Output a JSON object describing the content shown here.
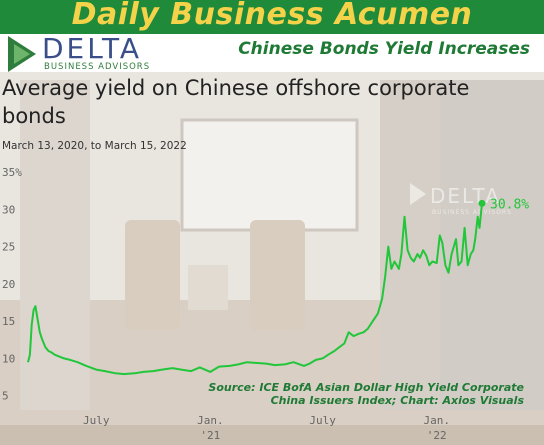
{
  "banner": {
    "title": "Daily Business Acumen"
  },
  "logo": {
    "name": "DELTA",
    "tagline": "BUSINESS ADVISORS"
  },
  "headline": "Chinese Bonds Yield Increases",
  "watermark": {
    "name": "DELTA",
    "tagline": "BUSINESS ADVISORS"
  },
  "colors": {
    "banner": "#1f8a3a",
    "banner_text": "#f4d24a",
    "line": "#22c63a",
    "headline": "#1f7a35"
  },
  "chart_data": {
    "type": "line",
    "title": "Average yield on Chinese offshore corporate bonds",
    "subtitle": "March 13, 2020, to March 15, 2022",
    "xlabel": "",
    "ylabel": "",
    "ylim": [
      0,
      35
    ],
    "yticks": [
      {
        "value": 5,
        "label": "5"
      },
      {
        "value": 10,
        "label": "10"
      },
      {
        "value": 15,
        "label": "15"
      },
      {
        "value": 20,
        "label": "20"
      },
      {
        "value": 25,
        "label": "25"
      },
      {
        "value": 30,
        "label": "30"
      },
      {
        "value": 35,
        "label": "35%"
      }
    ],
    "xlim": [
      "2020-03-13",
      "2022-03-15"
    ],
    "xticks": [
      {
        "date": "2020-07-01",
        "label": "July",
        "sub": ""
      },
      {
        "date": "2021-01-01",
        "label": "Jan.",
        "sub": "'21"
      },
      {
        "date": "2021-07-01",
        "label": "July",
        "sub": ""
      },
      {
        "date": "2022-01-01",
        "label": "Jan.",
        "sub": "'22"
      }
    ],
    "end_label": "30.8%",
    "grid": false,
    "series": [
      {
        "x": [
          "2020-03-13",
          "2020-03-16",
          "2020-03-19",
          "2020-03-22",
          "2020-03-25",
          "2020-03-28",
          "2020-04-01",
          "2020-04-05",
          "2020-04-10",
          "2020-04-15",
          "2020-04-20",
          "2020-04-25",
          "2020-05-01",
          "2020-05-10",
          "2020-05-20",
          "2020-06-01",
          "2020-06-15",
          "2020-07-01",
          "2020-07-15",
          "2020-08-01",
          "2020-08-15",
          "2020-09-01",
          "2020-09-15",
          "2020-10-01",
          "2020-10-15",
          "2020-11-01",
          "2020-11-15",
          "2020-12-01",
          "2020-12-15",
          "2021-01-01",
          "2021-01-15",
          "2021-02-01",
          "2021-02-15",
          "2021-03-01",
          "2021-03-15",
          "2021-04-01",
          "2021-04-15",
          "2021-05-01",
          "2021-05-15",
          "2021-06-01",
          "2021-06-10",
          "2021-06-20",
          "2021-07-01",
          "2021-07-10",
          "2021-07-20",
          "2021-07-28",
          "2021-08-05",
          "2021-08-12",
          "2021-08-20",
          "2021-08-28",
          "2021-09-05",
          "2021-09-12",
          "2021-09-20",
          "2021-09-28",
          "2021-10-05",
          "2021-10-10",
          "2021-10-15",
          "2021-10-20",
          "2021-10-25",
          "2021-11-01",
          "2021-11-05",
          "2021-11-10",
          "2021-11-15",
          "2021-11-20",
          "2021-11-25",
          "2021-12-01",
          "2021-12-05",
          "2021-12-10",
          "2021-12-15",
          "2021-12-20",
          "2021-12-25",
          "2022-01-01",
          "2022-01-06",
          "2022-01-10",
          "2022-01-15",
          "2022-01-20",
          "2022-01-25",
          "2022-02-01",
          "2022-02-05",
          "2022-02-10",
          "2022-02-15",
          "2022-02-20",
          "2022-02-25",
          "2022-03-01",
          "2022-03-04",
          "2022-03-08",
          "2022-03-11",
          "2022-03-15"
        ],
        "values": [
          9.5,
          10.5,
          14.5,
          16.5,
          17.0,
          15.5,
          13.5,
          12.5,
          11.5,
          11.0,
          10.8,
          10.5,
          10.3,
          10.0,
          9.8,
          9.5,
          9.0,
          8.5,
          8.3,
          8.0,
          7.9,
          8.0,
          8.2,
          8.3,
          8.5,
          8.7,
          8.5,
          8.3,
          8.8,
          8.2,
          8.9,
          9.0,
          9.2,
          9.5,
          9.4,
          9.3,
          9.1,
          9.2,
          9.5,
          9.0,
          9.3,
          9.8,
          10.0,
          10.5,
          11.0,
          11.5,
          12.0,
          13.5,
          13.0,
          13.3,
          13.5,
          14.0,
          15.0,
          16.0,
          18.0,
          21.0,
          25.0,
          22.0,
          23.0,
          22.0,
          24.0,
          29.0,
          24.5,
          23.5,
          23.0,
          24.0,
          23.5,
          24.5,
          23.8,
          22.5,
          23.0,
          22.8,
          26.5,
          25.5,
          22.5,
          21.5,
          24.0,
          26.0,
          22.5,
          23.0,
          27.5,
          22.5,
          24.0,
          24.5,
          26.0,
          29.0,
          27.5,
          30.8
        ]
      }
    ]
  },
  "source": {
    "line1": "Source: ICE BofA Asian Dollar High Yield Corporate",
    "line2": "China Issuers Index; Chart: Axios Visuals"
  }
}
